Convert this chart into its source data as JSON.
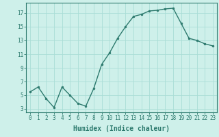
{
  "x": [
    0,
    1,
    2,
    3,
    4,
    5,
    6,
    7,
    8,
    9,
    10,
    11,
    12,
    13,
    14,
    15,
    16,
    17,
    18,
    19,
    20,
    21,
    22,
    23
  ],
  "y": [
    5.5,
    6.2,
    4.5,
    3.2,
    6.2,
    5.0,
    3.8,
    3.4,
    6.0,
    9.5,
    11.2,
    13.3,
    15.0,
    16.5,
    16.8,
    17.3,
    17.4,
    17.6,
    17.7,
    15.5,
    13.3,
    13.0,
    12.5,
    12.2
  ],
  "line_color": "#2d7a6e",
  "marker": "o",
  "marker_size": 2.0,
  "bg_color": "#cef0ea",
  "grid_color": "#aaddd6",
  "xlabel": "Humidex (Indice chaleur)",
  "xlim": [
    -0.5,
    23.5
  ],
  "ylim": [
    2.5,
    18.5
  ],
  "xticks": [
    0,
    1,
    2,
    3,
    4,
    5,
    6,
    7,
    8,
    9,
    10,
    11,
    12,
    13,
    14,
    15,
    16,
    17,
    18,
    19,
    20,
    21,
    22,
    23
  ],
  "yticks": [
    3,
    5,
    7,
    9,
    11,
    13,
    15,
    17
  ],
  "axis_color": "#2d7a6e",
  "tick_color": "#2d7a6e",
  "label_fontsize": 6.5,
  "tick_fontsize": 5.5,
  "xlabel_fontsize": 7.0
}
